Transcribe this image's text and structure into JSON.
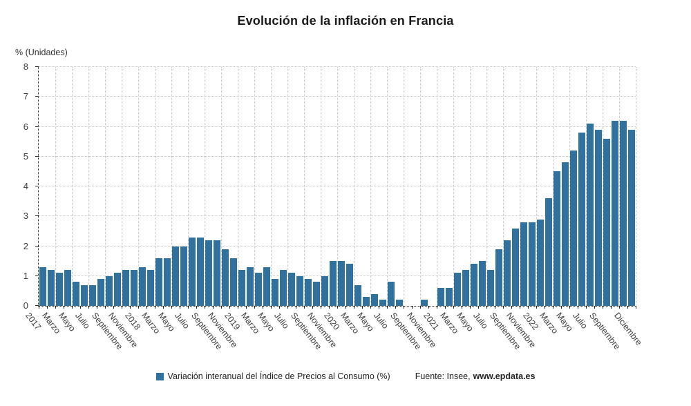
{
  "page": {
    "title": "Evolución de la inflación en Francia",
    "y_axis_unit": "% (Unidades)"
  },
  "legend": {
    "series": "Variación interanual del Índice de Precios al Consumo (%)",
    "source_label": "Fuente: Insee,",
    "source_link": "www.epdata.es"
  },
  "colors": {
    "bar": "#31719f",
    "grid": "#c9c9c9",
    "axis": "#2b2b2b",
    "tick_text": "#3d3d3d",
    "title_text": "#1a1a1a"
  },
  "chart_data": {
    "type": "bar",
    "title": "Evolución de la inflación en Francia",
    "xlabel": "",
    "ylabel": "% (Unidades)",
    "ylim": [
      0,
      8
    ],
    "y_ticks": [
      0,
      1,
      2,
      3,
      4,
      5,
      6,
      7,
      8
    ],
    "grid": true,
    "legend_position": "bottom",
    "x_monthly_start": "2017-01",
    "x_monthly_end": "2022-12",
    "series": [
      {
        "name": "Variación interanual del Índice de Precios al Consumo (%)",
        "color": "#31719f",
        "values": [
          1.3,
          1.2,
          1.1,
          1.2,
          0.8,
          0.7,
          0.7,
          0.9,
          1.0,
          1.1,
          1.2,
          1.2,
          1.3,
          1.2,
          1.6,
          1.6,
          2.0,
          2.0,
          2.3,
          2.3,
          2.2,
          2.2,
          1.9,
          1.6,
          1.2,
          1.3,
          1.1,
          1.3,
          0.9,
          1.2,
          1.1,
          1.0,
          0.9,
          0.8,
          1.0,
          1.5,
          1.5,
          1.4,
          0.7,
          0.3,
          0.4,
          0.2,
          0.8,
          0.2,
          0.0,
          0.0,
          0.2,
          0.0,
          0.6,
          0.6,
          1.1,
          1.2,
          1.4,
          1.5,
          1.2,
          1.9,
          2.2,
          2.6,
          2.8,
          2.8,
          2.9,
          3.6,
          4.5,
          4.8,
          5.2,
          5.8,
          6.1,
          5.9,
          5.6,
          6.2,
          6.2,
          5.9
        ]
      }
    ],
    "x_tick_labels": [
      {
        "i": 0,
        "label": "2017"
      },
      {
        "i": 2,
        "label": "Marzo"
      },
      {
        "i": 4,
        "label": "Mayo"
      },
      {
        "i": 6,
        "label": "Julio"
      },
      {
        "i": 8,
        "label": "Septiembre"
      },
      {
        "i": 10,
        "label": "Noviembre"
      },
      {
        "i": 12,
        "label": "2018"
      },
      {
        "i": 14,
        "label": "Marzo"
      },
      {
        "i": 16,
        "label": "Mayo"
      },
      {
        "i": 18,
        "label": "Julio"
      },
      {
        "i": 20,
        "label": "Septiembre"
      },
      {
        "i": 22,
        "label": "Noviembre"
      },
      {
        "i": 24,
        "label": "2019"
      },
      {
        "i": 26,
        "label": "Marzo"
      },
      {
        "i": 28,
        "label": "Mayo"
      },
      {
        "i": 30,
        "label": "Julio"
      },
      {
        "i": 32,
        "label": "Septiembre"
      },
      {
        "i": 34,
        "label": "Noviembre"
      },
      {
        "i": 36,
        "label": "2020"
      },
      {
        "i": 38,
        "label": "Marzo"
      },
      {
        "i": 40,
        "label": "Mayo"
      },
      {
        "i": 42,
        "label": "Julio"
      },
      {
        "i": 44,
        "label": "Septiembre"
      },
      {
        "i": 46,
        "label": "Noviembre"
      },
      {
        "i": 48,
        "label": "2021"
      },
      {
        "i": 50,
        "label": "Marzo"
      },
      {
        "i": 52,
        "label": "Mayo"
      },
      {
        "i": 54,
        "label": "Julio"
      },
      {
        "i": 56,
        "label": "Septiembre"
      },
      {
        "i": 58,
        "label": "Noviembre"
      },
      {
        "i": 60,
        "label": "2022"
      },
      {
        "i": 62,
        "label": "Marzo"
      },
      {
        "i": 64,
        "label": "Mayo"
      },
      {
        "i": 66,
        "label": "Julio"
      },
      {
        "i": 68,
        "label": "Septiembre"
      },
      {
        "i": 71,
        "label": "Diciembre"
      }
    ]
  }
}
